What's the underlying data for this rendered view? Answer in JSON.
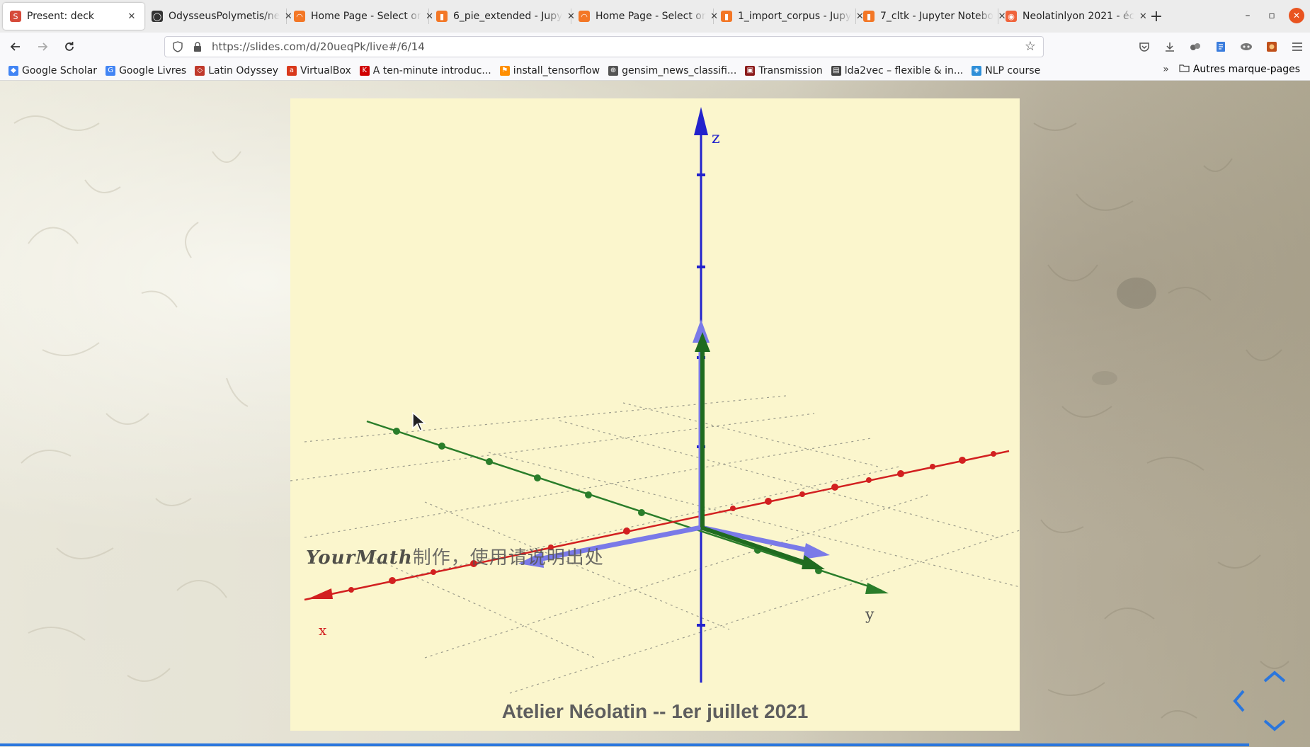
{
  "browser": {
    "tabs": [
      {
        "title": "Present: deck",
        "favicon": "slides-icon",
        "favicon_color": "#d64a3a",
        "favicon_char": "S",
        "active": true
      },
      {
        "title": "OdysseusPolymetis/ne",
        "favicon": "github-icon",
        "favicon_color": "#333333",
        "favicon_char": "◯",
        "active": false
      },
      {
        "title": "Home Page - Select or",
        "favicon": "jupyter-icon",
        "favicon_color": "#f37726",
        "favicon_char": "◠",
        "active": false
      },
      {
        "title": "6_pie_extended - Jupy",
        "favicon": "notebook-icon",
        "favicon_color": "#f37726",
        "favicon_char": "▮",
        "active": false
      },
      {
        "title": "Home Page - Select or",
        "favicon": "jupyter-icon",
        "favicon_color": "#f37726",
        "favicon_char": "◠",
        "active": false
      },
      {
        "title": "1_import_corpus - Jupy",
        "favicon": "notebook-icon",
        "favicon_color": "#f37726",
        "favicon_char": "▮",
        "active": false
      },
      {
        "title": "7_cltk - Jupyter Notebo",
        "favicon": "notebook-icon",
        "favicon_color": "#f37726",
        "favicon_char": "▮",
        "active": false
      },
      {
        "title": "Neolatinlyon 2021 - éc",
        "favicon": "site-icon",
        "favicon_color": "#f0643c",
        "favicon_char": "◉",
        "active": false
      }
    ],
    "new_tab": "+",
    "window_controls": {
      "minimize": "–",
      "restore": "▫",
      "close": "✕"
    },
    "url": "https://slides.com/d/20ueqPk/live#/6/14",
    "url_host": "slides.com",
    "bookmarks": [
      {
        "label": "Google Scholar",
        "icon": "scholar-icon",
        "color": "#4285f4",
        "char": "◆"
      },
      {
        "label": "Google Livres",
        "icon": "google-icon",
        "color": "#4285f4",
        "char": "G"
      },
      {
        "label": "Latin Odyssey",
        "icon": "latin-odyssey-icon",
        "color": "#c0392b",
        "char": "◇"
      },
      {
        "label": "VirtualBox",
        "icon": "ask-icon",
        "color": "#d9391c",
        "char": "a"
      },
      {
        "label": "A ten-minute introduc...",
        "icon": "keras-icon",
        "color": "#d00000",
        "char": "K"
      },
      {
        "label": "install_tensorflow",
        "icon": "tensorflow-icon",
        "color": "#ff8f00",
        "char": "⚑"
      },
      {
        "label": "gensim_news_classifi...",
        "icon": "globe-icon",
        "color": "#555555",
        "char": "⊕"
      },
      {
        "label": "Transmission",
        "icon": "transmission-icon",
        "color": "#8b1a1a",
        "char": "▣"
      },
      {
        "label": "lda2vec – flexible & in...",
        "icon": "book-icon",
        "color": "#444444",
        "char": "▤"
      },
      {
        "label": "NLP course",
        "icon": "shield-icon",
        "color": "#2f8fd8",
        "char": "◈"
      }
    ],
    "other_bookmarks": "Autres marque-pages"
  },
  "slide": {
    "footer": "Atelier Néolatin -- 1er juillet 2021",
    "watermark_latin": "YourMath",
    "watermark_cjk": "制作，使用请说明出处",
    "axis_labels": {
      "x": "x",
      "y": "y",
      "z": "z"
    },
    "colors": {
      "x_axis": "#d22020",
      "y_axis": "#2a7d2a",
      "z_axis": "#2222cc",
      "vector_blue": "#7a7ae8",
      "vector_green": "#1f6b1f",
      "slide_bg": "#fbf6cd",
      "progress": "#2a76dd"
    }
  }
}
